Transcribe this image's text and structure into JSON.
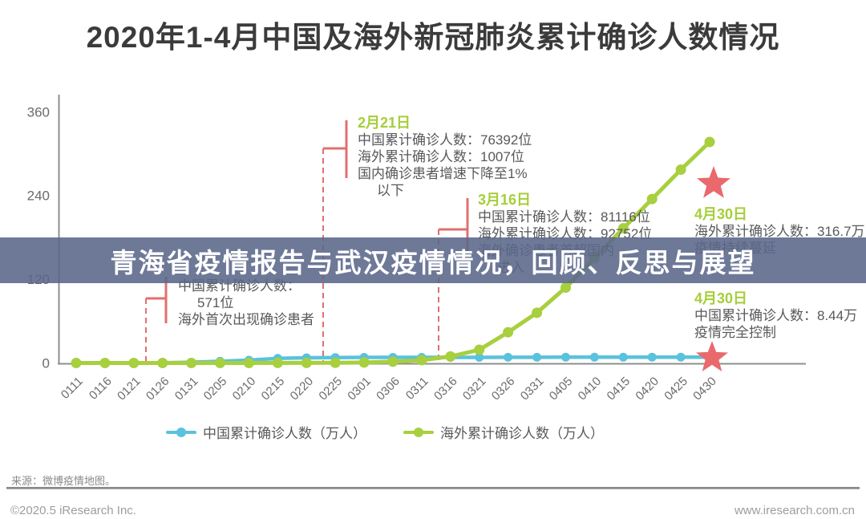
{
  "header": {
    "title": "2020年1-4月中国及海外新冠肺炎累计确诊人数情况"
  },
  "overlay": {
    "text": "青海省疫情报告与武汉疫情情况，回顾、反思与展望"
  },
  "colors": {
    "china_line": "#5bc2dd",
    "overseas_line": "#a8cf3e",
    "event_marker": "#e0706e",
    "star": "#e9696d",
    "annotation_date_green": "#a6ce39",
    "banner_bg": "#5a678a",
    "title_text": "#3b3b3b"
  },
  "chart_data": {
    "type": "line",
    "title": "2020年1-4月中国及海外新冠肺炎累计确诊人数情况",
    "xlabel": "",
    "ylabel": "",
    "ylim": [
      0,
      360
    ],
    "yticks": [
      0,
      120,
      240,
      360
    ],
    "grid": false,
    "legend_position": "bottom",
    "categories": [
      "0111",
      "0116",
      "0121",
      "0126",
      "0131",
      "0205",
      "0210",
      "0215",
      "0220",
      "0225",
      "0301",
      "0306",
      "0311",
      "0316",
      "0321",
      "0326",
      "0331",
      "0405",
      "0410",
      "0415",
      "0420",
      "0425",
      "0430"
    ],
    "series": [
      {
        "name": "中国累计确诊人数（万人）",
        "color": "#5bc2dd",
        "values": [
          0,
          0,
          0.05,
          0.2,
          1.0,
          2.4,
          4.0,
          6.6,
          7.5,
          7.8,
          8.0,
          8.1,
          8.1,
          8.1,
          8.1,
          8.2,
          8.2,
          8.3,
          8.3,
          8.3,
          8.4,
          8.4,
          8.44
        ]
      },
      {
        "name": "海外累计确诊人数（万人）",
        "color": "#a8cf3e",
        "values": [
          0,
          0,
          0,
          0,
          0,
          0,
          0.05,
          0.1,
          0.1,
          0.2,
          0.7,
          1.8,
          4,
          9.3,
          19,
          44,
          72,
          108,
          150,
          193,
          235,
          277,
          316.7
        ]
      }
    ],
    "event_dashed_line_dates": [
      "0123",
      "0221",
      "0316"
    ],
    "annotations": [
      {
        "id": "jan-571",
        "date": "",
        "lines": [
          "中国累计确诊人数：",
          "571位",
          "海外首次出现确诊患者"
        ]
      },
      {
        "id": "feb21",
        "date": "2月21日",
        "lines": [
          "中国累计确诊人数：76392位",
          "海外累计确诊人数：1007位",
          "国内确诊患者增速下降至1%",
          "以下"
        ]
      },
      {
        "id": "mar16",
        "date": "3月16日",
        "lines": [
          "中国累计确诊人数：81116位",
          "海外累计确诊人数：92752位",
          "海外确诊患者首超国内",
          "进入"
        ]
      },
      {
        "id": "apr30-overseas",
        "date": "4月30日",
        "lines": [
          "海外累计确诊人数：316.7万",
          "疫情持续蔓延"
        ]
      },
      {
        "id": "apr30-china",
        "date": "4月30日",
        "lines": [
          "中国累计确诊人数：8.44万",
          "疫情完全控制"
        ]
      }
    ]
  },
  "footer": {
    "source": "来源：微博疫情地图。",
    "copyright": "©2020.5 iResearch Inc.",
    "website": "www.iresearch.com.cn"
  }
}
